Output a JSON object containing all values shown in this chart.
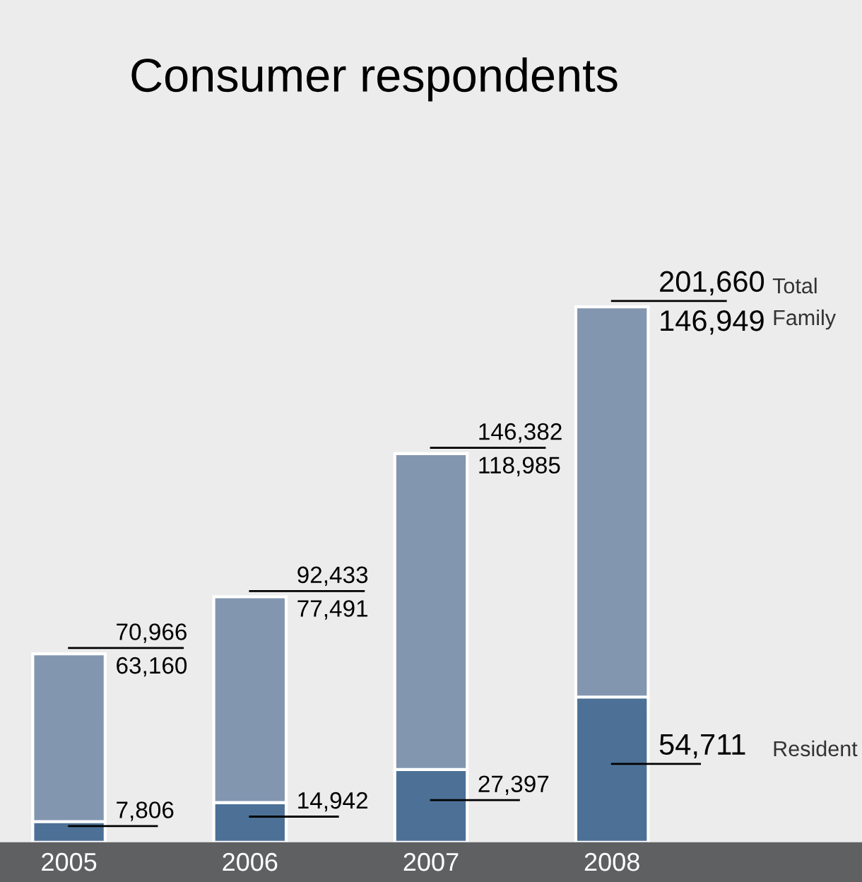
{
  "chart_data": {
    "type": "bar",
    "title": "Consumer respondents",
    "stacked": true,
    "categories": [
      "2005",
      "2006",
      "2007",
      "2008"
    ],
    "series": [
      {
        "name": "Resident",
        "color": "#4d7196",
        "values": [
          7806,
          14942,
          27397,
          54711
        ],
        "value_labels": [
          "7,806",
          "14,942",
          "27,397",
          "54,711"
        ]
      },
      {
        "name": "Family",
        "color": "#8396b0",
        "values": [
          63160,
          77491,
          118985,
          146949
        ],
        "value_labels": [
          "63,160",
          "77,491",
          "118,985",
          "146,949"
        ]
      }
    ],
    "totals": [
      "70,966",
      "92,433",
      "146,382",
      "201,660"
    ],
    "annotations": [
      "Total"
    ],
    "legend": false
  }
}
